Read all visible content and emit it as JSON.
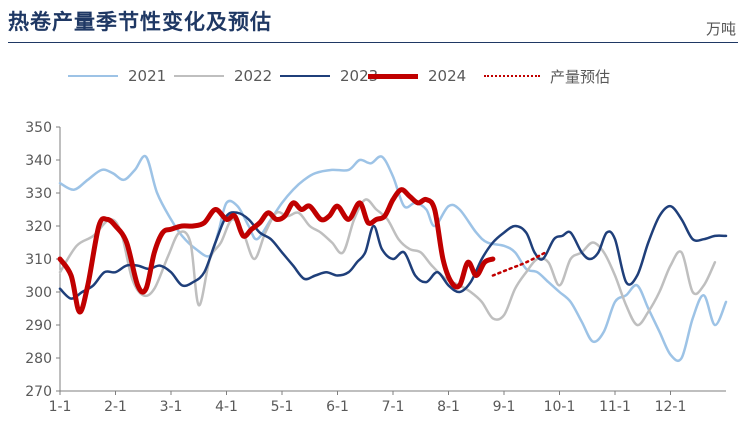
{
  "title": "热卷产量季节性变化及预估",
  "unit": "万吨",
  "legend": [
    {
      "label": "2021",
      "color": "#9dc3e6",
      "style": "solid",
      "width": 2.5
    },
    {
      "label": "2022",
      "color": "#bfbfbf",
      "style": "solid",
      "width": 2.5
    },
    {
      "label": "2023",
      "color": "#1f3f7a",
      "style": "solid",
      "width": 2.5
    },
    {
      "label": "2024",
      "color": "#c00000",
      "style": "solid",
      "width": 5
    },
    {
      "label": "产量预估",
      "color": "#c00000",
      "style": "dotted",
      "width": 2.5
    }
  ],
  "chart_data": {
    "type": "line",
    "title": "热卷产量季节性变化及预估",
    "xlabel": "",
    "ylabel": "",
    "unit": "万吨",
    "x_domain": [
      0,
      12
    ],
    "x_ticks": [
      "1-1",
      "2-1",
      "3-1",
      "4-1",
      "5-1",
      "6-1",
      "7-1",
      "8-1",
      "9-1",
      "10-1",
      "11-1",
      "12-1"
    ],
    "ylim": [
      270,
      350
    ],
    "y_ticks": [
      270,
      280,
      290,
      300,
      310,
      320,
      330,
      340,
      350
    ],
    "grid": false,
    "legend_position": "top",
    "series": [
      {
        "name": "2021",
        "color": "#9dc3e6",
        "width": 2.5,
        "points": [
          [
            0.0,
            333
          ],
          [
            0.25,
            331
          ],
          [
            0.5,
            334
          ],
          [
            0.75,
            337
          ],
          [
            0.95,
            336
          ],
          [
            1.15,
            334
          ],
          [
            1.35,
            337
          ],
          [
            1.55,
            341
          ],
          [
            1.75,
            330
          ],
          [
            2.0,
            322
          ],
          [
            2.2,
            317
          ],
          [
            2.45,
            313
          ],
          [
            2.7,
            311
          ],
          [
            2.85,
            318
          ],
          [
            3.0,
            327
          ],
          [
            3.2,
            326
          ],
          [
            3.4,
            320
          ],
          [
            3.55,
            316
          ],
          [
            3.8,
            322
          ],
          [
            4.0,
            327
          ],
          [
            4.2,
            331
          ],
          [
            4.4,
            334
          ],
          [
            4.6,
            336
          ],
          [
            4.9,
            337
          ],
          [
            5.2,
            337
          ],
          [
            5.4,
            340
          ],
          [
            5.6,
            339
          ],
          [
            5.8,
            341
          ],
          [
            6.0,
            335
          ],
          [
            6.2,
            326
          ],
          [
            6.4,
            327
          ],
          [
            6.6,
            325
          ],
          [
            6.75,
            320
          ],
          [
            7.0,
            326
          ],
          [
            7.2,
            325
          ],
          [
            7.5,
            318
          ],
          [
            7.7,
            315
          ],
          [
            8.0,
            314
          ],
          [
            8.2,
            312
          ],
          [
            8.4,
            307
          ],
          [
            8.6,
            306
          ],
          [
            8.8,
            303
          ],
          [
            9.0,
            300
          ],
          [
            9.2,
            297
          ],
          [
            9.4,
            291
          ],
          [
            9.6,
            285
          ],
          [
            9.8,
            288
          ],
          [
            10.0,
            297
          ],
          [
            10.2,
            299
          ],
          [
            10.4,
            302
          ],
          [
            10.6,
            295
          ],
          [
            10.8,
            288
          ],
          [
            11.0,
            281
          ],
          [
            11.2,
            280
          ],
          [
            11.4,
            292
          ],
          [
            11.6,
            299
          ],
          [
            11.8,
            290
          ],
          [
            12.0,
            297
          ]
        ]
      },
      {
        "name": "2022",
        "color": "#bfbfbf",
        "width": 2.5,
        "points": [
          [
            0.0,
            306
          ],
          [
            0.3,
            314
          ],
          [
            0.6,
            317
          ],
          [
            0.9,
            322
          ],
          [
            1.1,
            318
          ],
          [
            1.3,
            304
          ],
          [
            1.5,
            299
          ],
          [
            1.7,
            301
          ],
          [
            1.95,
            311
          ],
          [
            2.15,
            318
          ],
          [
            2.35,
            315
          ],
          [
            2.5,
            296
          ],
          [
            2.7,
            310
          ],
          [
            2.9,
            315
          ],
          [
            3.1,
            322
          ],
          [
            3.3,
            318
          ],
          [
            3.5,
            310
          ],
          [
            3.7,
            318
          ],
          [
            3.9,
            324
          ],
          [
            4.1,
            323
          ],
          [
            4.3,
            324
          ],
          [
            4.5,
            320
          ],
          [
            4.7,
            318
          ],
          [
            4.9,
            315
          ],
          [
            5.1,
            312
          ],
          [
            5.3,
            322
          ],
          [
            5.5,
            328
          ],
          [
            5.7,
            325
          ],
          [
            5.9,
            322
          ],
          [
            6.1,
            316
          ],
          [
            6.3,
            313
          ],
          [
            6.5,
            312
          ],
          [
            6.7,
            308
          ],
          [
            6.95,
            304
          ],
          [
            7.2,
            302
          ],
          [
            7.4,
            300
          ],
          [
            7.6,
            297
          ],
          [
            7.8,
            292
          ],
          [
            8.0,
            293
          ],
          [
            8.2,
            301
          ],
          [
            8.4,
            306
          ],
          [
            8.6,
            310
          ],
          [
            8.8,
            309
          ],
          [
            9.0,
            302
          ],
          [
            9.2,
            310
          ],
          [
            9.4,
            312
          ],
          [
            9.6,
            315
          ],
          [
            9.8,
            312
          ],
          [
            10.0,
            305
          ],
          [
            10.2,
            296
          ],
          [
            10.4,
            290
          ],
          [
            10.6,
            294
          ],
          [
            10.8,
            300
          ],
          [
            11.0,
            308
          ],
          [
            11.2,
            312
          ],
          [
            11.4,
            300
          ],
          [
            11.6,
            302
          ],
          [
            11.8,
            309
          ]
        ]
      },
      {
        "name": "2023",
        "color": "#1f3f7a",
        "width": 2.5,
        "points": [
          [
            0.0,
            301
          ],
          [
            0.2,
            298
          ],
          [
            0.4,
            300
          ],
          [
            0.6,
            302
          ],
          [
            0.8,
            306
          ],
          [
            1.0,
            306
          ],
          [
            1.2,
            308
          ],
          [
            1.4,
            308
          ],
          [
            1.6,
            307
          ],
          [
            1.8,
            308
          ],
          [
            2.0,
            306
          ],
          [
            2.2,
            302
          ],
          [
            2.4,
            303
          ],
          [
            2.6,
            306
          ],
          [
            2.8,
            315
          ],
          [
            3.0,
            323
          ],
          [
            3.2,
            324
          ],
          [
            3.4,
            322
          ],
          [
            3.6,
            318
          ],
          [
            3.8,
            316
          ],
          [
            4.0,
            312
          ],
          [
            4.2,
            308
          ],
          [
            4.4,
            304
          ],
          [
            4.6,
            305
          ],
          [
            4.8,
            306
          ],
          [
            5.0,
            305
          ],
          [
            5.2,
            306
          ],
          [
            5.35,
            309
          ],
          [
            5.5,
            312
          ],
          [
            5.65,
            320
          ],
          [
            5.8,
            313
          ],
          [
            6.0,
            310
          ],
          [
            6.2,
            312
          ],
          [
            6.4,
            305
          ],
          [
            6.6,
            303
          ],
          [
            6.8,
            306
          ],
          [
            7.0,
            302
          ],
          [
            7.2,
            300
          ],
          [
            7.4,
            303
          ],
          [
            7.6,
            310
          ],
          [
            7.8,
            315
          ],
          [
            8.0,
            318
          ],
          [
            8.2,
            320
          ],
          [
            8.4,
            318
          ],
          [
            8.55,
            312
          ],
          [
            8.7,
            310
          ],
          [
            8.9,
            316
          ],
          [
            9.05,
            317
          ],
          [
            9.2,
            318
          ],
          [
            9.4,
            312
          ],
          [
            9.55,
            310
          ],
          [
            9.7,
            312
          ],
          [
            9.85,
            318
          ],
          [
            10.0,
            316
          ],
          [
            10.2,
            303
          ],
          [
            10.4,
            305
          ],
          [
            10.6,
            315
          ],
          [
            10.8,
            323
          ],
          [
            11.0,
            326
          ],
          [
            11.2,
            322
          ],
          [
            11.4,
            316
          ],
          [
            11.6,
            316
          ],
          [
            11.8,
            317
          ],
          [
            12.0,
            317
          ]
        ]
      },
      {
        "name": "2024",
        "color": "#c00000",
        "width": 5,
        "points": [
          [
            0.0,
            310
          ],
          [
            0.2,
            305
          ],
          [
            0.35,
            294
          ],
          [
            0.5,
            302
          ],
          [
            0.7,
            320
          ],
          [
            0.85,
            322
          ],
          [
            1.0,
            320
          ],
          [
            1.2,
            315
          ],
          [
            1.4,
            302
          ],
          [
            1.55,
            301
          ],
          [
            1.7,
            312
          ],
          [
            1.85,
            318
          ],
          [
            2.0,
            319
          ],
          [
            2.2,
            320
          ],
          [
            2.4,
            320
          ],
          [
            2.6,
            321
          ],
          [
            2.8,
            325
          ],
          [
            3.0,
            322
          ],
          [
            3.15,
            323
          ],
          [
            3.3,
            317
          ],
          [
            3.45,
            319
          ],
          [
            3.6,
            321
          ],
          [
            3.75,
            324
          ],
          [
            3.9,
            322
          ],
          [
            4.05,
            323
          ],
          [
            4.2,
            327
          ],
          [
            4.35,
            325
          ],
          [
            4.5,
            326
          ],
          [
            4.7,
            322
          ],
          [
            4.85,
            323
          ],
          [
            5.0,
            326
          ],
          [
            5.2,
            322
          ],
          [
            5.4,
            327
          ],
          [
            5.55,
            321
          ],
          [
            5.7,
            322
          ],
          [
            5.85,
            323
          ],
          [
            6.0,
            328
          ],
          [
            6.15,
            331
          ],
          [
            6.3,
            329
          ],
          [
            6.45,
            327
          ],
          [
            6.6,
            328
          ],
          [
            6.75,
            325
          ],
          [
            6.9,
            310
          ],
          [
            7.05,
            303
          ],
          [
            7.2,
            302
          ],
          [
            7.35,
            309
          ],
          [
            7.5,
            305
          ],
          [
            7.65,
            309
          ],
          [
            7.8,
            310
          ]
        ]
      },
      {
        "name": "产量预估",
        "color": "#c00000",
        "width": 2.5,
        "dotted": true,
        "points": [
          [
            7.8,
            305
          ],
          [
            8.1,
            307
          ],
          [
            8.4,
            309
          ],
          [
            8.75,
            312
          ]
        ]
      }
    ]
  }
}
